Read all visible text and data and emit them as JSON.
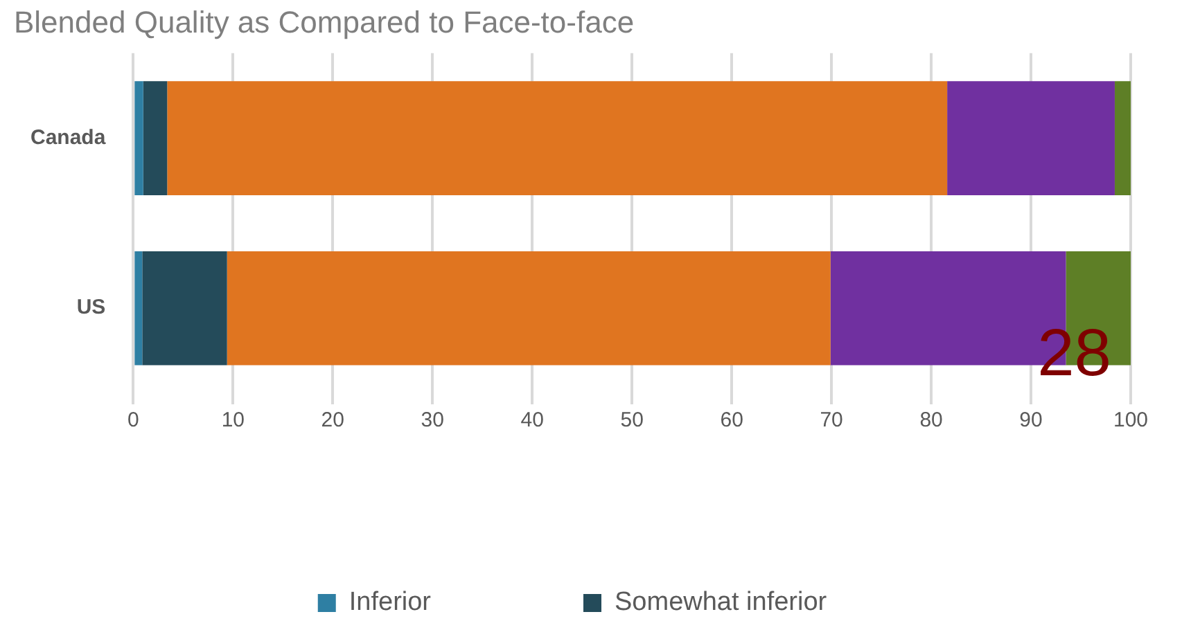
{
  "chart_data": {
    "type": "bar",
    "orientation": "horizontal",
    "stacked": true,
    "title": "Blended Quality as Compared to Face-to-face",
    "categories": [
      "Canada",
      "US"
    ],
    "series": [
      {
        "name": "Inferior",
        "color": "#2e7fa3",
        "values": [
          1.0,
          0.9
        ]
      },
      {
        "name": "Somewhat inferior",
        "color": "#244b5a",
        "values": [
          2.4,
          8.5
        ]
      },
      {
        "color": "#e07520",
        "values": [
          78.2,
          60.5
        ]
      },
      {
        "color": "#7030a0",
        "values": [
          16.8,
          23.6
        ]
      },
      {
        "color": "#5e7f26",
        "values": [
          1.6,
          6.5
        ]
      }
    ],
    "xlim": [
      0,
      100
    ],
    "xticks": [
      0,
      10,
      20,
      30,
      40,
      50,
      60,
      70,
      80,
      90,
      100
    ],
    "grid": "x",
    "legend": "bottom",
    "annotations": [
      "28"
    ]
  }
}
